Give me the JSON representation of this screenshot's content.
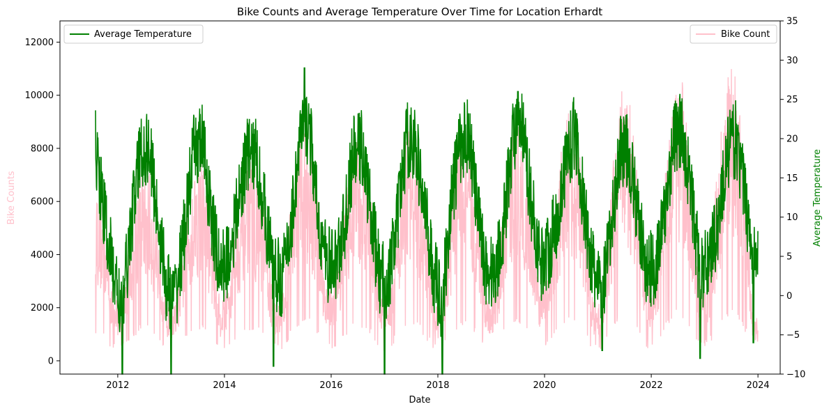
{
  "chart_data": {
    "type": "line",
    "title": "Bike Counts and Average Temperature Over Time for Location Erhardt",
    "xlabel": "Date",
    "ylabel_left": "Bike Counts",
    "ylabel_right": "Average Temperature",
    "x_ticks": [
      "2012",
      "2014",
      "2016",
      "2018",
      "2020",
      "2022",
      "2024"
    ],
    "x_range": [
      "2010-12-01",
      "2024-06-01"
    ],
    "data_range": [
      "2011-08-01",
      "2023-12-31"
    ],
    "y_left_ticks": [
      0,
      2000,
      4000,
      6000,
      8000,
      10000,
      12000
    ],
    "y_left_lim": [
      -500,
      12800
    ],
    "y_right_ticks": [
      -10,
      -5,
      0,
      5,
      10,
      15,
      20,
      25,
      30,
      35
    ],
    "y_right_lim": [
      -10,
      35
    ],
    "grid": false,
    "colors": {
      "bike": "#ffc0cb",
      "temperature": "#008000"
    },
    "series": [
      {
        "name": "Bike Count",
        "axis": "left",
        "legend_position": "upper right",
        "monthly_x": [
          "2011-08",
          "2011-10",
          "2011-12",
          "2012-02",
          "2012-04",
          "2012-06",
          "2012-08",
          "2012-10",
          "2012-12",
          "2013-02",
          "2013-04",
          "2013-06",
          "2013-08",
          "2013-10",
          "2013-12",
          "2014-02",
          "2014-04",
          "2014-06",
          "2014-08",
          "2014-10",
          "2014-12",
          "2015-02",
          "2015-04",
          "2015-06",
          "2015-08",
          "2015-10",
          "2015-12",
          "2016-02",
          "2016-04",
          "2016-06",
          "2016-08",
          "2016-10",
          "2016-12",
          "2017-02",
          "2017-04",
          "2017-06",
          "2017-08",
          "2017-10",
          "2017-12",
          "2018-02",
          "2018-04",
          "2018-06",
          "2018-08",
          "2018-10",
          "2018-12",
          "2019-02",
          "2019-04",
          "2019-06",
          "2019-08",
          "2019-10",
          "2019-12",
          "2020-02",
          "2020-04",
          "2020-06",
          "2020-08",
          "2020-10",
          "2020-12",
          "2021-02",
          "2021-04",
          "2021-06",
          "2021-08",
          "2021-10",
          "2021-12",
          "2022-02",
          "2022-04",
          "2022-06",
          "2022-08",
          "2022-10",
          "2022-12",
          "2023-02",
          "2023-04",
          "2023-06",
          "2023-08",
          "2023-10",
          "2023-12"
        ],
        "monthly_y": [
          5200,
          4200,
          1800,
          1700,
          3800,
          5600,
          5400,
          3900,
          1500,
          1600,
          3600,
          5400,
          5800,
          4100,
          1600,
          2300,
          4300,
          5900,
          5400,
          4200,
          1700,
          1900,
          4600,
          6700,
          6600,
          4600,
          2000,
          2400,
          4300,
          6300,
          6100,
          4500,
          2000,
          1600,
          4400,
          6500,
          6200,
          4500,
          1700,
          1400,
          4600,
          6600,
          6200,
          4500,
          1700,
          2000,
          4800,
          6900,
          6500,
          4700,
          2100,
          2400,
          5200,
          7100,
          6600,
          4700,
          1700,
          1600,
          5000,
          7600,
          7400,
          5200,
          2100,
          2600,
          5500,
          8400,
          7800,
          5400,
          2100,
          2700,
          5600,
          8200,
          8300,
          5500,
          1200
        ]
      },
      {
        "name": "Average Temperature",
        "axis": "right",
        "legend_position": "upper left",
        "monthly_x": [
          "2011-08",
          "2011-10",
          "2011-12",
          "2012-02",
          "2012-04",
          "2012-06",
          "2012-08",
          "2012-10",
          "2012-12",
          "2013-02",
          "2013-04",
          "2013-06",
          "2013-08",
          "2013-10",
          "2013-12",
          "2014-02",
          "2014-04",
          "2014-06",
          "2014-08",
          "2014-10",
          "2014-12",
          "2015-02",
          "2015-04",
          "2015-06",
          "2015-08",
          "2015-10",
          "2015-12",
          "2016-02",
          "2016-04",
          "2016-06",
          "2016-08",
          "2016-10",
          "2016-12",
          "2017-02",
          "2017-04",
          "2017-06",
          "2017-08",
          "2017-10",
          "2017-12",
          "2018-02",
          "2018-04",
          "2018-06",
          "2018-08",
          "2018-10",
          "2018-12",
          "2019-02",
          "2019-04",
          "2019-06",
          "2019-08",
          "2019-10",
          "2019-12",
          "2020-02",
          "2020-04",
          "2020-06",
          "2020-08",
          "2020-10",
          "2020-12",
          "2021-02",
          "2021-04",
          "2021-06",
          "2021-08",
          "2021-10",
          "2021-12",
          "2022-02",
          "2022-04",
          "2022-06",
          "2022-08",
          "2022-10",
          "2022-12",
          "2023-02",
          "2023-04",
          "2023-06",
          "2023-08",
          "2023-10",
          "2023-12"
        ],
        "monthly_y": [
          19,
          10,
          3,
          -2,
          9,
          18,
          19,
          10,
          1,
          0,
          8,
          18,
          20,
          10,
          3,
          5,
          11,
          18,
          18,
          11,
          3,
          2,
          9,
          20,
          22,
          10,
          4,
          4,
          9,
          18,
          19,
          10,
          2,
          2,
          10,
          20,
          19,
          11,
          3,
          -1,
          12,
          19,
          21,
          10,
          3,
          3,
          10,
          21,
          21,
          12,
          4,
          6,
          10,
          18,
          21,
          10,
          3,
          0,
          8,
          19,
          18,
          10,
          3,
          4,
          10,
          20,
          21,
          13,
          2,
          5,
          9,
          18,
          20,
          13,
          5
        ],
        "extremes": [
          {
            "x": "2012-02",
            "y": -12
          },
          {
            "x": "2013-01",
            "y": -11
          },
          {
            "x": "2014-12",
            "y": -9
          },
          {
            "x": "2015-07",
            "y": 29
          },
          {
            "x": "2017-01",
            "y": -10
          },
          {
            "x": "2018-02",
            "y": -11
          },
          {
            "x": "2019-07",
            "y": 26
          },
          {
            "x": "2021-02",
            "y": -7
          },
          {
            "x": "2022-12",
            "y": -8
          },
          {
            "x": "2023-12",
            "y": -6
          }
        ]
      }
    ]
  }
}
